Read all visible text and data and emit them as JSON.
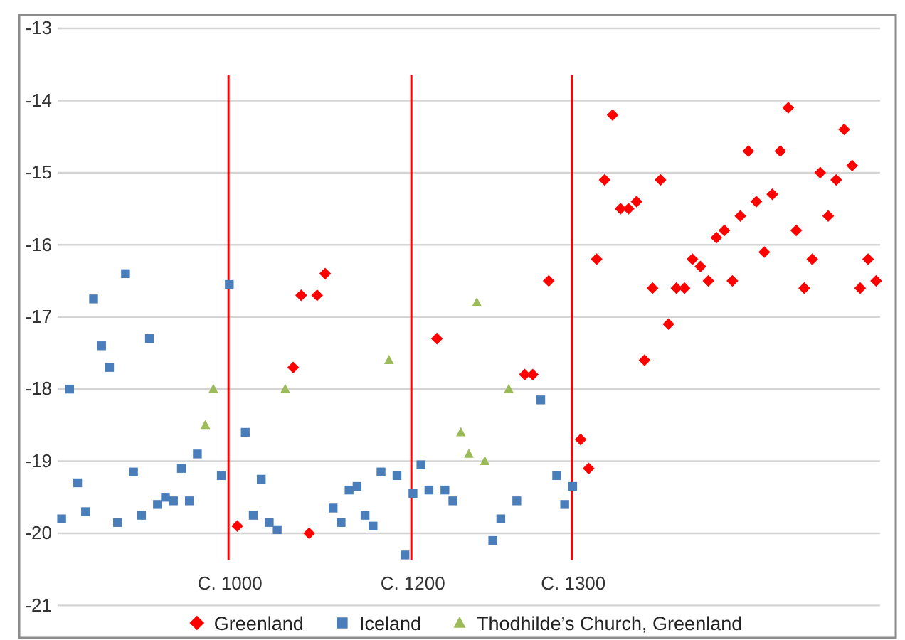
{
  "chart_data": {
    "type": "scatter",
    "categories": [
      null,
      null,
      null,
      null,
      null,
      null,
      null,
      null,
      null,
      null,
      null,
      null,
      null,
      null,
      null,
      null,
      null,
      null,
      null,
      null,
      null,
      null,
      null,
      null,
      null,
      null,
      null,
      null,
      null,
      null,
      null,
      null,
      null,
      null,
      null,
      null,
      null,
      null,
      null,
      null,
      null,
      null,
      null,
      null,
      null,
      null,
      null,
      null,
      null,
      null,
      null,
      null,
      null,
      null,
      null,
      null,
      null,
      null,
      null,
      null,
      null,
      null,
      null,
      null,
      null,
      null,
      null,
      null,
      null,
      null,
      null,
      null,
      null,
      null,
      null,
      null,
      null,
      null,
      null,
      null,
      null,
      null,
      null,
      null,
      null,
      null,
      null,
      null,
      null,
      null,
      null,
      null,
      null,
      null,
      null,
      null,
      null,
      null,
      null,
      null,
      null,
      null,
      null
    ],
    "series": [
      {
        "name": "Greenland",
        "color": "#ff0000",
        "marker": "diamond",
        "values": [
          null,
          null,
          null,
          null,
          null,
          null,
          null,
          null,
          null,
          null,
          null,
          null,
          null,
          null,
          null,
          null,
          null,
          null,
          null,
          null,
          null,
          null,
          -19.9,
          null,
          null,
          null,
          null,
          null,
          null,
          -17.7,
          -16.7,
          -20.0,
          -16.7,
          -16.4,
          null,
          null,
          null,
          null,
          null,
          null,
          null,
          null,
          null,
          null,
          null,
          null,
          null,
          -17.3,
          null,
          null,
          null,
          null,
          null,
          null,
          null,
          null,
          null,
          null,
          -17.8,
          -17.8,
          null,
          -16.5,
          null,
          null,
          null,
          -18.7,
          -19.1,
          -16.2,
          -15.1,
          -14.2,
          -15.5,
          -15.5,
          -15.4,
          -17.6,
          -16.6,
          -15.1,
          -17.1,
          -16.6,
          -16.6,
          -16.2,
          -16.3,
          -16.5,
          -15.9,
          -15.8,
          -16.5,
          -15.6,
          -14.7,
          -15.4,
          -16.1,
          -15.3,
          -14.7,
          -14.1,
          -15.8,
          -16.6,
          -16.2,
          -15.0,
          -15.6,
          -15.1,
          -14.4,
          -14.9,
          -16.6,
          -16.2,
          -16.5
        ]
      },
      {
        "name": "Iceland",
        "color": "#4a7ebb",
        "marker": "square",
        "values": [
          -19.8,
          -18.0,
          -19.3,
          -19.7,
          -16.75,
          -17.4,
          -17.7,
          -19.85,
          -16.4,
          -19.15,
          -19.75,
          -17.3,
          -19.6,
          -19.5,
          -19.55,
          -19.1,
          -19.55,
          -18.9,
          null,
          null,
          -19.2,
          -16.55,
          null,
          -18.6,
          -19.75,
          -19.25,
          -19.85,
          -19.95,
          null,
          null,
          null,
          null,
          null,
          null,
          -19.65,
          -19.85,
          -19.4,
          -19.35,
          -19.75,
          -19.9,
          -19.15,
          null,
          -19.2,
          -20.3,
          -19.45,
          -19.05,
          -19.4,
          null,
          -19.4,
          -19.55,
          null,
          null,
          null,
          null,
          -20.1,
          -19.8,
          null,
          -19.55,
          null,
          null,
          -18.15,
          null,
          -19.2,
          -19.6,
          -19.35,
          null,
          null,
          null,
          null,
          null,
          null,
          null,
          null,
          null,
          null,
          null,
          null,
          null,
          null,
          null,
          null,
          null,
          null,
          null,
          null,
          null,
          null,
          null,
          null,
          null,
          null,
          null,
          null,
          null,
          null,
          null,
          null,
          null,
          null,
          null,
          null,
          null,
          null
        ]
      },
      {
        "name": "Thodhilde’s Church, Greenland",
        "color": "#9bbb59",
        "marker": "triangle",
        "values": [
          null,
          null,
          null,
          null,
          null,
          null,
          null,
          null,
          null,
          null,
          null,
          null,
          null,
          null,
          null,
          null,
          null,
          null,
          -18.5,
          -18.0,
          null,
          null,
          null,
          null,
          null,
          null,
          null,
          null,
          -18.0,
          null,
          null,
          null,
          null,
          null,
          null,
          null,
          null,
          null,
          null,
          null,
          null,
          -17.6,
          null,
          null,
          null,
          null,
          null,
          null,
          null,
          null,
          -18.6,
          -18.9,
          -16.8,
          -19.0,
          null,
          null,
          -18.0,
          null,
          null,
          null,
          null,
          null,
          null,
          null,
          null,
          null,
          null,
          null,
          null,
          null,
          null,
          null,
          null,
          null,
          null,
          null,
          null,
          null,
          null,
          null,
          null,
          null,
          null,
          null,
          null,
          null,
          null,
          null,
          null,
          null,
          null,
          null,
          null,
          null,
          null,
          null,
          null,
          null,
          null,
          null,
          null,
          null,
          null
        ]
      }
    ],
    "ylim": [
      -21,
      -13
    ],
    "yticks": [
      -21,
      -20,
      -19,
      -18,
      -17,
      -16,
      -15,
      -14,
      -13
    ],
    "grid": "y",
    "legend": "bottom",
    "tick_labels": "y",
    "annotations": [
      "C. 1000",
      "C. 1200",
      "C. 1300"
    ]
  }
}
